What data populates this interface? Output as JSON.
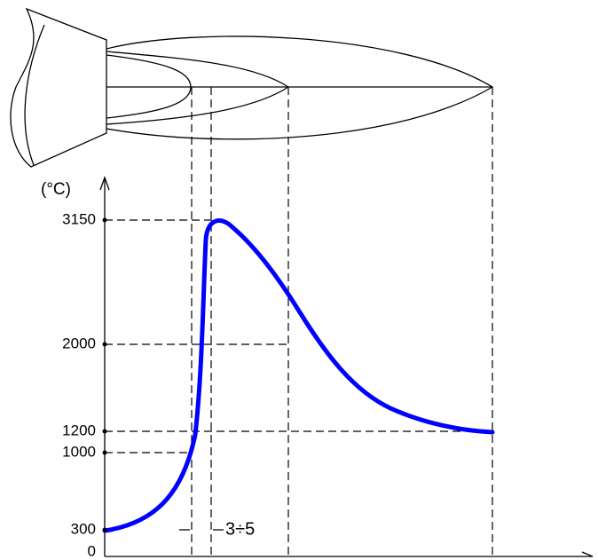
{
  "y_axis": {
    "label": "(°C)",
    "ticks": [
      3150,
      2000,
      1200,
      1000,
      300,
      0
    ]
  },
  "annotation": "3÷5"
}
